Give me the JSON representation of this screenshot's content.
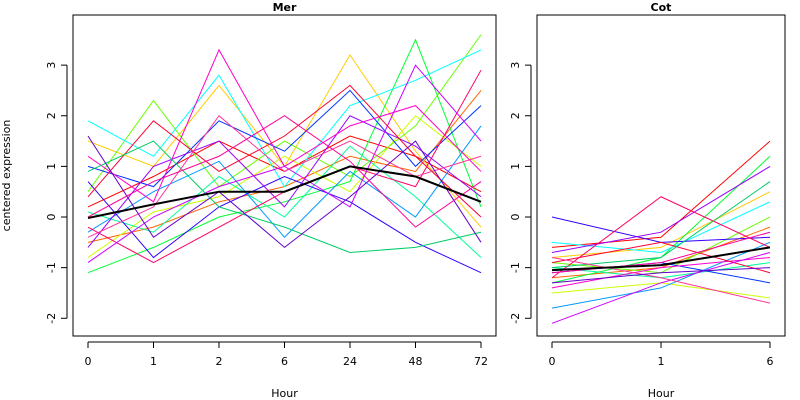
{
  "chart_data": [
    {
      "type": "line",
      "title": "Mer",
      "xlabel": "Hour",
      "ylabel": "centered expression",
      "categories": [
        "0",
        "1",
        "2",
        "6",
        "24",
        "48",
        "72"
      ],
      "ylim": [
        -2.35,
        3.99
      ],
      "yticks": [
        -2,
        -1,
        0,
        1,
        2,
        3
      ],
      "series": [
        {
          "color": "#ff0000",
          "values": [
            0.2,
            0.8,
            1.5,
            0.9,
            1.6,
            1.2,
            0.5
          ]
        },
        {
          "color": "#ff6600",
          "values": [
            -0.5,
            -0.2,
            0.3,
            0.6,
            1.2,
            0.9,
            2.5
          ]
        },
        {
          "color": "#ffcc00",
          "values": [
            1.5,
            1.0,
            2.6,
            1.0,
            3.2,
            1.3,
            -0.2
          ]
        },
        {
          "color": "#ccff00",
          "values": [
            -0.8,
            0.1,
            0.4,
            1.2,
            0.5,
            2.0,
            1.0
          ]
        },
        {
          "color": "#66ff00",
          "values": [
            0.5,
            2.3,
            0.6,
            1.5,
            0.8,
            1.8,
            3.6
          ]
        },
        {
          "color": "#00ff33",
          "values": [
            -1.1,
            -0.6,
            0.0,
            0.3,
            0.7,
            3.5,
            0.2
          ]
        },
        {
          "color": "#00ff99",
          "values": [
            0.1,
            -0.3,
            0.8,
            0.0,
            1.4,
            0.4,
            -0.8
          ]
        },
        {
          "color": "#00ffff",
          "values": [
            1.9,
            1.2,
            2.8,
            0.6,
            2.2,
            2.7,
            3.3
          ]
        },
        {
          "color": "#0099ff",
          "values": [
            -0.3,
            0.5,
            1.1,
            -0.4,
            0.9,
            0.0,
            1.8
          ]
        },
        {
          "color": "#0033ff",
          "values": [
            1.0,
            0.6,
            1.9,
            1.3,
            2.5,
            1.0,
            2.2
          ]
        },
        {
          "color": "#3300ff",
          "values": [
            0.7,
            -0.8,
            0.2,
            0.8,
            0.3,
            -0.5,
            -1.1
          ]
        },
        {
          "color": "#9900ff",
          "values": [
            -0.6,
            1.0,
            1.5,
            0.2,
            2.0,
            1.4,
            0.4
          ]
        },
        {
          "color": "#ff00cc",
          "values": [
            1.2,
            0.3,
            3.3,
            1.0,
            1.8,
            2.2,
            0.9
          ]
        },
        {
          "color": "#ff0066",
          "values": [
            -0.2,
            -0.9,
            -0.2,
            0.5,
            1.0,
            0.6,
            2.9
          ]
        },
        {
          "color": "#ff0033",
          "values": [
            0.4,
            1.9,
            0.9,
            1.6,
            2.6,
            1.2,
            0.0
          ]
        },
        {
          "color": "#cc00ff",
          "values": [
            -0.9,
            0.0,
            0.6,
            1.0,
            0.2,
            3.0,
            1.5
          ]
        },
        {
          "color": "#00cc66",
          "values": [
            0.9,
            1.5,
            0.2,
            -0.2,
            -0.7,
            -0.6,
            -0.3
          ]
        },
        {
          "color": "#ff3399",
          "values": [
            -0.4,
            0.2,
            2.0,
            0.9,
            1.5,
            0.8,
            1.2
          ]
        },
        {
          "color": "#6600cc",
          "values": [
            1.6,
            -0.4,
            0.5,
            -0.6,
            0.4,
            1.5,
            -0.5
          ]
        },
        {
          "color": "#ff0099",
          "values": [
            0.0,
            0.7,
            1.2,
            2.0,
            1.1,
            -0.2,
            0.7
          ]
        },
        {
          "color": "#000000",
          "line_width": 2,
          "values": [
            -0.02,
            0.25,
            0.5,
            0.5,
            1.0,
            0.8,
            0.3
          ]
        }
      ]
    },
    {
      "type": "line",
      "title": "Cot",
      "xlabel": "Hour",
      "categories": [
        "0",
        "1",
        "6"
      ],
      "ylim": [
        -2.35,
        3.99
      ],
      "yticks": [
        -2,
        -1,
        0,
        1,
        2,
        3
      ],
      "series": [
        {
          "color": "#ff0000",
          "values": [
            -0.6,
            -0.4,
            1.5
          ]
        },
        {
          "color": "#ff6600",
          "values": [
            -1.2,
            -1.0,
            -0.2
          ]
        },
        {
          "color": "#ffcc00",
          "values": [
            -0.8,
            -0.6,
            0.5
          ]
        },
        {
          "color": "#ccff00",
          "values": [
            -1.5,
            -1.3,
            -1.6
          ]
        },
        {
          "color": "#66ff00",
          "values": [
            -0.9,
            -1.1,
            0.0
          ]
        },
        {
          "color": "#00ff33",
          "values": [
            -1.3,
            -0.8,
            1.2
          ]
        },
        {
          "color": "#00ff99",
          "values": [
            -1.0,
            -1.2,
            -0.9
          ]
        },
        {
          "color": "#00ffff",
          "values": [
            -0.5,
            -0.7,
            0.3
          ]
        },
        {
          "color": "#0099ff",
          "values": [
            -1.8,
            -1.4,
            -0.5
          ]
        },
        {
          "color": "#0033ff",
          "values": [
            -1.1,
            -0.9,
            -1.3
          ]
        },
        {
          "color": "#3300ff",
          "values": [
            0.0,
            -0.5,
            -0.4
          ]
        },
        {
          "color": "#9900ff",
          "values": [
            -0.7,
            -0.3,
            1.0
          ]
        },
        {
          "color": "#ff00cc",
          "values": [
            -1.4,
            -1.0,
            -0.8
          ]
        },
        {
          "color": "#ff0066",
          "values": [
            -1.2,
            0.4,
            -0.6
          ]
        },
        {
          "color": "#ff0033",
          "values": [
            -0.9,
            -0.5,
            -1.1
          ]
        },
        {
          "color": "#cc00ff",
          "values": [
            -2.1,
            -1.3,
            -0.7
          ]
        },
        {
          "color": "#00cc66",
          "values": [
            -1.0,
            -0.8,
            0.7
          ]
        },
        {
          "color": "#ff3399",
          "values": [
            -0.8,
            -1.2,
            -1.7
          ]
        },
        {
          "color": "#6600cc",
          "values": [
            -1.3,
            -1.1,
            -1.0
          ]
        },
        {
          "color": "#ff0099",
          "values": [
            -1.1,
            -0.9,
            -0.3
          ]
        },
        {
          "color": "#000000",
          "line_width": 2,
          "values": [
            -1.05,
            -0.95,
            -0.6
          ]
        }
      ]
    }
  ]
}
